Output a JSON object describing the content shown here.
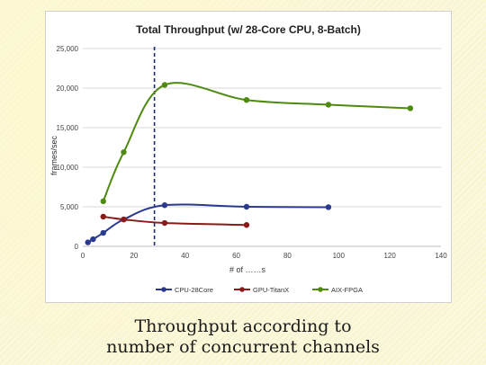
{
  "chart_data": {
    "type": "line",
    "title": "Total Throughput (w/ 28-Core CPU, 8-Batch)",
    "xlabel": "# of ……s",
    "ylabel": "frames/sec",
    "xlim": [
      0,
      140
    ],
    "ylim": [
      0,
      25000
    ],
    "x_ticks": [
      "0",
      "20",
      "40",
      "60",
      "80",
      "100",
      "120",
      "140"
    ],
    "y_ticks": [
      "0",
      "5,000",
      "10,000",
      "15,000",
      "20,000",
      "25,000"
    ],
    "grid": "horizontal",
    "legend_position": "bottom",
    "reference_line": {
      "x": 28,
      "style": "dashed",
      "color": "#1f2a6e"
    },
    "series": [
      {
        "name": "CPU-28Core",
        "color": "#2b3a8f",
        "x": [
          2,
          4,
          8,
          16,
          32,
          64,
          96
        ],
        "y": [
          500,
          900,
          1700,
          3400,
          5200,
          5000,
          4950
        ]
      },
      {
        "name": "GPU-TitanX",
        "color": "#8b1a1a",
        "x": [
          8,
          16,
          32,
          64
        ],
        "y": [
          3750,
          3400,
          2950,
          2700
        ]
      },
      {
        "name": "AIX-FPGA",
        "color": "#4f8a10",
        "x": [
          8,
          16,
          32,
          64,
          96,
          128
        ],
        "y": [
          5700,
          11900,
          20400,
          18500,
          17900,
          17450
        ]
      }
    ]
  },
  "caption": {
    "line1": "Throughput according to",
    "line2": "number of concurrent channels"
  }
}
